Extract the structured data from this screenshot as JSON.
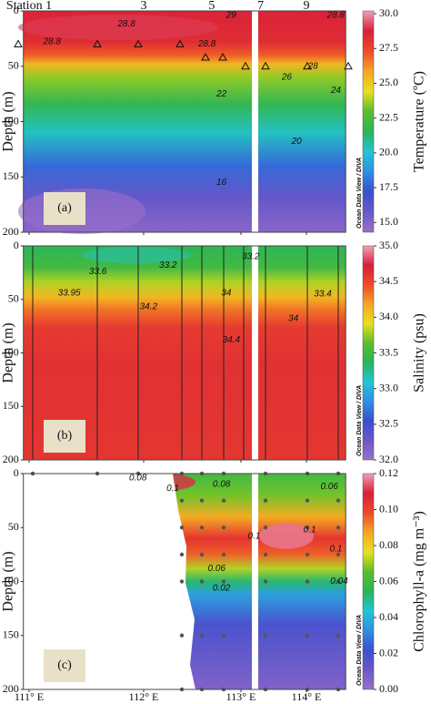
{
  "stations": [
    {
      "label": "Station 1",
      "x": 111.0
    },
    {
      "label": "3",
      "x": 112.0
    },
    {
      "label": "5",
      "x": 112.7
    },
    {
      "label": "7",
      "x": 113.3
    },
    {
      "label": "9",
      "x": 114.0
    }
  ],
  "colormap": [
    "#9a6fc9",
    "#6b58c8",
    "#3a4fd0",
    "#2f8fe0",
    "#22c4d8",
    "#2ab55a",
    "#5cbd2c",
    "#e8e020",
    "#f5a623",
    "#ee4a2a",
    "#d81f3a",
    "#f2a0b5"
  ],
  "chart_data": [
    {
      "type": "contour",
      "panel_label": "(a)",
      "watermark": "Ocean Data View / DIVA",
      "y_label": "Depth (m)",
      "ylim": [
        0,
        200
      ],
      "y_inverted": true,
      "yticks": [
        0,
        50,
        100,
        150,
        200
      ],
      "colorbar": {
        "label": "Temperature (ºC)",
        "lim": [
          14.3,
          30.2
        ],
        "ticks": [
          {
            "value": 15,
            "label": "15.0"
          },
          17.5,
          {
            "value": 20,
            "label": "20.0"
          },
          22.5,
          {
            "value": 25,
            "label": "25.0"
          },
          27.5,
          {
            "value": 30,
            "label": "30.0"
          }
        ]
      },
      "contour_labels": [
        {
          "value": 28.8,
          "x": 111.2,
          "y": 28
        },
        {
          "value": 28.8,
          "x": 111.85,
          "y": 12
        },
        {
          "value": 29,
          "x": 112.9,
          "y": 4
        },
        {
          "value": 28.8,
          "x": 112.65,
          "y": 30
        },
        {
          "value": 26,
          "x": 113.7,
          "y": 60
        },
        {
          "value": 28,
          "x": 114.1,
          "y": 50
        },
        {
          "value": 28.8,
          "x": 114.45,
          "y": 4
        },
        {
          "value": 24,
          "x": 114.45,
          "y": 72
        },
        {
          "value": 22,
          "x": 112.8,
          "y": 75
        },
        {
          "value": 20,
          "x": 113.85,
          "y": 118
        },
        {
          "value": 16,
          "x": 112.8,
          "y": 155
        }
      ]
    },
    {
      "type": "contour",
      "panel_label": "(b)",
      "watermark": "Ocean Data View / DIVA",
      "y_label": "Depth (m)",
      "ylim": [
        0,
        200
      ],
      "y_inverted": true,
      "yticks": [
        0,
        50,
        100,
        150,
        200
      ],
      "colorbar": {
        "label": "Salinity (psu)",
        "lim": [
          32.0,
          35.0
        ],
        "ticks": [
          {
            "value": 32,
            "label": "32.0"
          },
          32.5,
          {
            "value": 33,
            "label": "33.0"
          },
          33.5,
          {
            "value": 34,
            "label": "34.0"
          },
          34.5,
          {
            "value": 35,
            "label": "35.0"
          }
        ]
      },
      "contour_labels": [
        {
          "value": 33.6,
          "x": 111.6,
          "y": 24
        },
        {
          "value": 33.2,
          "x": 112.25,
          "y": 18
        },
        {
          "value": 33.95,
          "x": 111.35,
          "y": 44
        },
        {
          "value": 34.2,
          "x": 112.05,
          "y": 57
        },
        {
          "value": 34,
          "x": 112.85,
          "y": 44
        },
        {
          "value": 34.4,
          "x": 112.9,
          "y": 88
        },
        {
          "value": 33.2,
          "x": 113.15,
          "y": 10
        },
        {
          "value": 33.4,
          "x": 114.25,
          "y": 45
        },
        {
          "value": 34,
          "x": 113.8,
          "y": 68
        }
      ]
    },
    {
      "type": "contour",
      "panel_label": "(c)",
      "watermark": "Ocean Data View / DIVA",
      "y_label": "Depth (m)",
      "ylim": [
        0,
        200
      ],
      "y_inverted": true,
      "yticks": [
        0,
        50,
        100,
        150,
        200
      ],
      "xlim": [
        110.95,
        114.6
      ],
      "xticks": [
        {
          "value": 111,
          "label": "111° E"
        },
        {
          "value": 112,
          "label": "112° E"
        },
        {
          "value": 113,
          "label": "113° E"
        },
        {
          "value": 114,
          "label": "114° E"
        }
      ],
      "colorbar": {
        "label": "Chlorophyll-a (mg m⁻³)",
        "lim": [
          0,
          0.12
        ],
        "ticks": [
          {
            "value": 0,
            "label": "0.00"
          },
          0.02,
          0.04,
          0.06,
          0.08,
          {
            "value": 0.1,
            "label": "0.10"
          },
          0.12
        ]
      },
      "contour_labels": [
        {
          "value": 0.08,
          "x": 111.95,
          "y": 4
        },
        {
          "value": 0.1,
          "x": 112.3,
          "y": 14
        },
        {
          "value": 0.08,
          "x": 112.8,
          "y": 10
        },
        {
          "value": 0.1,
          "x": 113.2,
          "y": 58
        },
        {
          "value": 0.1,
          "x": 114.05,
          "y": 52
        },
        {
          "value": 0.1,
          "x": 114.45,
          "y": 70
        },
        {
          "value": 0.06,
          "x": 114.35,
          "y": 12
        },
        {
          "value": 0.06,
          "x": 112.75,
          "y": 88
        },
        {
          "value": 0.02,
          "x": 112.8,
          "y": 106
        },
        {
          "value": 0.04,
          "x": 114.5,
          "y": 100
        }
      ]
    }
  ]
}
